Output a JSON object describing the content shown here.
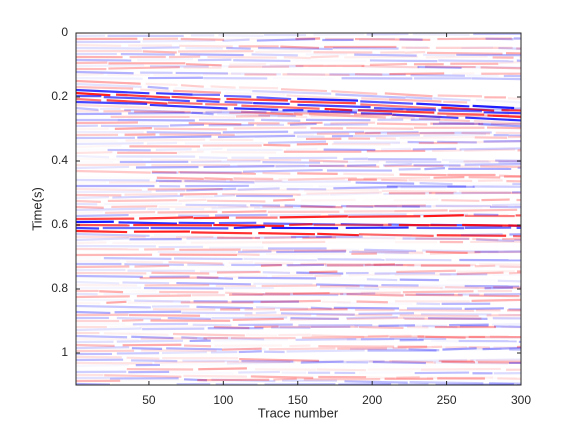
{
  "chart_data": {
    "type": "image",
    "xlabel": "Trace number",
    "ylabel": "Time(s)",
    "xlim": [
      1,
      300
    ],
    "xticks": [
      50,
      100,
      150,
      200,
      250,
      300
    ],
    "ylim": [
      0,
      1.1
    ],
    "yticks": [
      0,
      0.2,
      0.4,
      0.6,
      0.8,
      1
    ],
    "y_reversed": true,
    "colormap": [
      "#0000ff",
      "#ffffff",
      "#ff0000"
    ]
  }
}
